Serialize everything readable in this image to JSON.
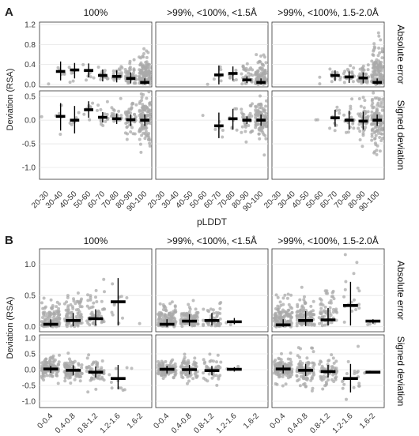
{
  "colors": {
    "points": "#a9a9a9",
    "summary": "#000000",
    "grid": "#e6e6e6",
    "frame": "#333333"
  },
  "chart_data": [
    {
      "type": "scatter",
      "panel_letter": "A",
      "column_titles": [
        "100%",
        ">99%, <100%, <1.5Å",
        ">99%, <100%, 1.5-2.0Å"
      ],
      "row_titles": [
        "Absolute error",
        "Signed deviation"
      ],
      "ylabel": "Deviation (RSA)",
      "xlabel": "pLDDT",
      "categories": [
        "20-30",
        "30-40",
        "40-50",
        "50-60",
        "60-70",
        "70-80",
        "80-90",
        "90-100"
      ],
      "rows": [
        {
          "ylim": [
            -0.05,
            1.25
          ],
          "yticks": [
            0.0,
            0.4,
            0.8,
            1.2
          ],
          "yticklabels": [
            "0.0",
            "0.4",
            "0.8",
            "1.2"
          ]
        },
        {
          "ylim": [
            -1.25,
            0.62
          ],
          "yticks": [
            -1.0,
            -0.5,
            0.0,
            0.5
          ],
          "yticklabels": [
            "-1.0",
            "-0.5",
            "0.0",
            "0.5"
          ]
        }
      ],
      "panels": [
        {
          "col": 0,
          "row": 0,
          "medians": [
            null,
            0.26,
            0.29,
            0.28,
            0.18,
            0.16,
            0.12,
            0.04
          ],
          "whisker_low": [
            null,
            0.08,
            0.12,
            0.14,
            0.06,
            0.04,
            0.02,
            0.0
          ],
          "whisker_high": [
            null,
            0.46,
            0.43,
            0.42,
            0.3,
            0.28,
            0.24,
            0.12
          ],
          "spread": [
            0.08,
            0.25,
            0.28,
            0.3,
            0.35,
            0.4,
            0.5,
            0.75
          ],
          "density": [
            1,
            5,
            6,
            8,
            14,
            22,
            50,
            120
          ]
        },
        {
          "col": 1,
          "row": 0,
          "medians": [
            null,
            null,
            null,
            null,
            0.19,
            0.22,
            0.09,
            0.04
          ],
          "whisker_low": [
            null,
            null,
            null,
            null,
            0.0,
            0.08,
            0.03,
            0.0
          ],
          "whisker_high": [
            null,
            null,
            null,
            null,
            0.38,
            0.36,
            0.16,
            0.12
          ],
          "spread": [
            0,
            0,
            0,
            0.2,
            0.3,
            0.35,
            0.45,
            0.6
          ],
          "density": [
            0,
            0,
            0,
            1,
            5,
            8,
            30,
            100
          ]
        },
        {
          "col": 2,
          "row": 0,
          "medians": [
            null,
            null,
            null,
            null,
            0.18,
            0.15,
            0.13,
            0.04
          ],
          "whisker_low": [
            null,
            null,
            null,
            null,
            0.07,
            0.03,
            0.02,
            0.0
          ],
          "whisker_high": [
            null,
            null,
            null,
            null,
            0.28,
            0.26,
            0.24,
            0.12
          ],
          "spread": [
            0,
            0,
            0,
            0.2,
            0.3,
            0.4,
            0.55,
            1.0
          ],
          "density": [
            0,
            0,
            0,
            2,
            10,
            18,
            45,
            120
          ]
        },
        {
          "col": 0,
          "row": 1,
          "medians": [
            null,
            0.08,
            0.0,
            0.22,
            0.06,
            0.03,
            0.01,
            0.0
          ],
          "whisker_low": [
            null,
            -0.22,
            -0.28,
            0.05,
            -0.05,
            -0.08,
            -0.12,
            -0.12
          ],
          "whisker_high": [
            null,
            0.36,
            0.3,
            0.4,
            0.17,
            0.14,
            0.12,
            0.12
          ],
          "spread": [
            0.25,
            0.4,
            0.45,
            0.4,
            0.5,
            0.55,
            0.7,
            0.9
          ],
          "density": [
            1,
            5,
            6,
            8,
            14,
            22,
            50,
            120
          ]
        },
        {
          "col": 1,
          "row": 1,
          "medians": [
            null,
            null,
            null,
            null,
            -0.12,
            0.03,
            0.0,
            0.0
          ],
          "whisker_low": [
            null,
            null,
            null,
            null,
            -0.38,
            -0.2,
            -0.08,
            -0.12
          ],
          "whisker_high": [
            null,
            null,
            null,
            null,
            0.16,
            0.24,
            0.08,
            0.12
          ],
          "spread": [
            0,
            0,
            0,
            0.3,
            0.4,
            0.45,
            0.5,
            0.7
          ],
          "density": [
            0,
            0,
            0,
            1,
            5,
            8,
            30,
            100
          ]
        },
        {
          "col": 2,
          "row": 1,
          "medians": [
            null,
            null,
            null,
            null,
            0.05,
            0.0,
            -0.02,
            0.0
          ],
          "whisker_low": [
            null,
            null,
            null,
            null,
            -0.14,
            -0.2,
            -0.2,
            -0.12
          ],
          "whisker_high": [
            null,
            null,
            null,
            null,
            0.22,
            0.2,
            0.18,
            0.12
          ],
          "spread": [
            0,
            0,
            0,
            0.3,
            0.45,
            0.55,
            0.65,
            1.0
          ],
          "density": [
            0,
            0,
            0,
            2,
            10,
            18,
            45,
            120
          ]
        }
      ]
    },
    {
      "type": "scatter",
      "panel_letter": "B",
      "column_titles": [
        "100%",
        ">99%, <100%, <1.5Å",
        ">99%, <100%, 1.5-2.0Å"
      ],
      "row_titles": [
        "Absolute error",
        "Signed deviation"
      ],
      "ylabel": "Deviation (RSA)",
      "xlabel": "",
      "categories": [
        "0-0.4",
        "0.4-0.8",
        "0.8-1.2",
        "1.2-1.6",
        "1.6-2"
      ],
      "rows": [
        {
          "ylim": [
            -0.08,
            1.25
          ],
          "yticks": [
            0.0,
            0.5,
            1.0
          ],
          "yticklabels": [
            "0.0",
            "0.5",
            "1.0"
          ]
        },
        {
          "ylim": [
            -1.2,
            1.1
          ],
          "yticks": [
            -1.0,
            -0.5,
            0.0,
            0.5,
            1.0
          ],
          "yticklabels": [
            "-1.0",
            "-0.5",
            "0.0",
            "0.5",
            "1.0"
          ]
        }
      ],
      "panels": [
        {
          "col": 0,
          "row": 0,
          "medians": [
            0.04,
            0.1,
            0.13,
            0.4,
            null
          ],
          "whisker_low": [
            0.0,
            0.01,
            0.02,
            0.02,
            null
          ],
          "whisker_high": [
            0.12,
            0.22,
            0.28,
            0.78,
            null
          ],
          "spread": [
            0.45,
            0.5,
            0.65,
            1.1,
            0.1
          ],
          "density": [
            120,
            90,
            50,
            10,
            1
          ]
        },
        {
          "col": 1,
          "row": 0,
          "medians": [
            0.04,
            0.09,
            0.1,
            0.08,
            null
          ],
          "whisker_low": [
            0.0,
            0.01,
            0.02,
            0.04,
            null
          ],
          "whisker_high": [
            0.12,
            0.2,
            0.22,
            0.14,
            null
          ],
          "spread": [
            0.4,
            0.45,
            0.45,
            0.15,
            0
          ],
          "density": [
            110,
            80,
            45,
            3,
            0
          ]
        },
        {
          "col": 2,
          "row": 0,
          "medians": [
            0.03,
            0.1,
            0.11,
            0.34,
            0.09
          ],
          "whisker_low": [
            0.0,
            0.01,
            0.02,
            0.02,
            0.05
          ],
          "whisker_high": [
            0.12,
            0.25,
            0.3,
            0.72,
            0.12
          ],
          "spread": [
            0.55,
            0.6,
            0.75,
            1.28,
            0.12
          ],
          "density": [
            130,
            100,
            60,
            18,
            3
          ]
        },
        {
          "col": 0,
          "row": 1,
          "medians": [
            0.02,
            -0.02,
            -0.08,
            -0.28,
            null
          ],
          "whisker_low": [
            -0.1,
            -0.18,
            -0.25,
            -0.62,
            null
          ],
          "whisker_high": [
            0.12,
            0.14,
            0.1,
            0.15,
            null
          ],
          "spread": [
            0.55,
            0.6,
            0.75,
            1.1,
            0.1
          ],
          "density": [
            120,
            90,
            50,
            10,
            1
          ]
        },
        {
          "col": 1,
          "row": 1,
          "medians": [
            0.01,
            0.0,
            -0.03,
            0.01,
            null
          ],
          "whisker_low": [
            -0.12,
            -0.15,
            -0.18,
            -0.06,
            null
          ],
          "whisker_high": [
            0.12,
            0.15,
            0.12,
            0.08,
            null
          ],
          "spread": [
            0.45,
            0.55,
            0.55,
            0.12,
            0
          ],
          "density": [
            110,
            80,
            45,
            3,
            0
          ]
        },
        {
          "col": 2,
          "row": 1,
          "medians": [
            0.02,
            -0.02,
            -0.06,
            -0.28,
            -0.08
          ],
          "whisker_low": [
            -0.12,
            -0.2,
            -0.25,
            -0.72,
            -0.1
          ],
          "whisker_high": [
            0.14,
            0.18,
            0.15,
            0.18,
            -0.05
          ],
          "spread": [
            0.6,
            0.7,
            0.85,
            1.2,
            0.1
          ],
          "density": [
            130,
            100,
            60,
            18,
            3
          ]
        }
      ]
    }
  ]
}
